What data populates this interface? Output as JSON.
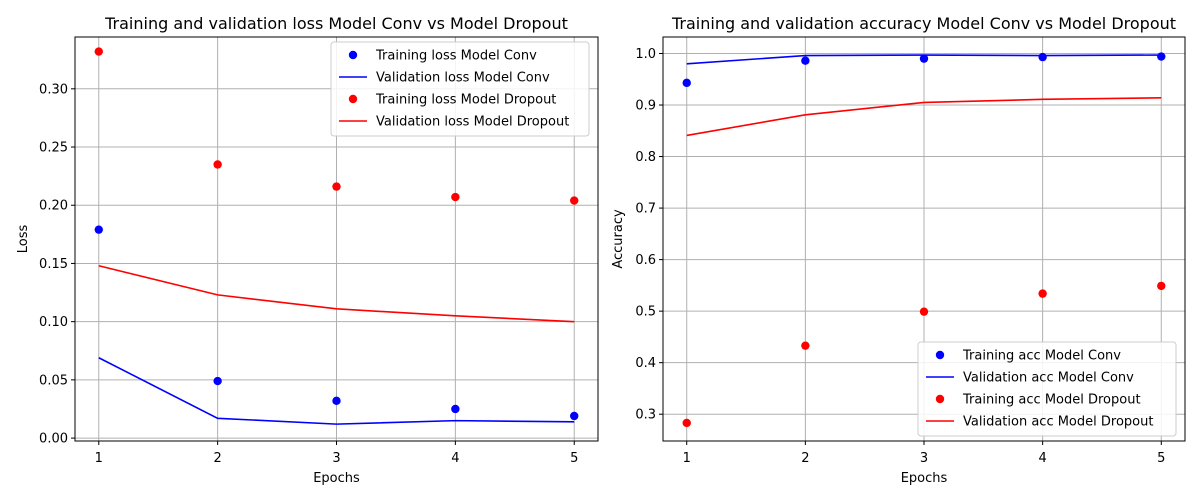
{
  "chart_data": [
    {
      "type": "line",
      "title": "Training and validation loss Model Conv vs Model Dropout",
      "xlabel": "Epochs",
      "ylabel": "Loss",
      "x": [
        1,
        2,
        3,
        4,
        5
      ],
      "xticks": [
        "1",
        "2",
        "3",
        "4",
        "5"
      ],
      "xlim": [
        0.8,
        5.2
      ],
      "ylim": [
        -0.0025,
        0.3445
      ],
      "yticks": [
        0.0,
        0.05,
        0.1,
        0.15,
        0.2,
        0.25,
        0.3
      ],
      "ytick_labels": [
        "0.00",
        "0.05",
        "0.10",
        "0.15",
        "0.20",
        "0.25",
        "0.30"
      ],
      "grid": true,
      "legend_position": "top-right",
      "series": [
        {
          "name": "Training loss Model Conv",
          "style": "points",
          "color": "#0000ff",
          "values": [
            0.179,
            0.049,
            0.032,
            0.025,
            0.019
          ]
        },
        {
          "name": "Validation loss Model Conv",
          "style": "line",
          "color": "#0000ff",
          "values": [
            0.069,
            0.017,
            0.012,
            0.015,
            0.014
          ]
        },
        {
          "name": "Training loss Model Dropout",
          "style": "points",
          "color": "#ff0000",
          "values": [
            0.332,
            0.235,
            0.216,
            0.207,
            0.204
          ]
        },
        {
          "name": "Validation loss Model Dropout",
          "style": "line",
          "color": "#ff0000",
          "values": [
            0.148,
            0.123,
            0.111,
            0.105,
            0.1
          ]
        }
      ]
    },
    {
      "type": "line",
      "title": "Training and validation accuracy Model Conv vs Model Dropout",
      "xlabel": "Epochs",
      "ylabel": "Accuracy",
      "x": [
        1,
        2,
        3,
        4,
        5
      ],
      "xticks": [
        "1",
        "2",
        "3",
        "4",
        "5"
      ],
      "xlim": [
        0.8,
        5.2
      ],
      "ylim": [
        0.248,
        1.032
      ],
      "yticks": [
        0.3,
        0.4,
        0.5,
        0.6,
        0.7,
        0.8,
        0.9,
        1.0
      ],
      "ytick_labels": [
        "0.3",
        "0.4",
        "0.5",
        "0.6",
        "0.7",
        "0.8",
        "0.9",
        "1.0"
      ],
      "grid": true,
      "legend_position": "bottom-right",
      "series": [
        {
          "name": "Training acc Model Conv",
          "style": "points",
          "color": "#0000ff",
          "values": [
            0.943,
            0.986,
            0.99,
            0.993,
            0.994
          ]
        },
        {
          "name": "Validation acc Model Conv",
          "style": "line",
          "color": "#0000ff",
          "values": [
            0.98,
            0.996,
            0.997,
            0.996,
            0.997
          ]
        },
        {
          "name": "Training acc Model Dropout",
          "style": "points",
          "color": "#ff0000",
          "values": [
            0.283,
            0.433,
            0.499,
            0.534,
            0.549
          ]
        },
        {
          "name": "Validation acc Model Dropout",
          "style": "line",
          "color": "#ff0000",
          "values": [
            0.841,
            0.881,
            0.905,
            0.911,
            0.914
          ]
        }
      ]
    }
  ]
}
